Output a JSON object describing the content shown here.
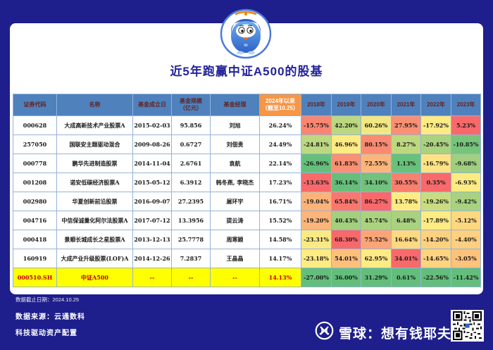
{
  "page": {
    "title": "近5年跑赢中证A500的股基"
  },
  "colors": {
    "background": "#1E1E8C",
    "title_text": "#23239B",
    "header_bg": "#4F81BD",
    "header_text": "#632423",
    "ytd_header_bg": "#F79646",
    "ytd_header_text": "#FFFFFF",
    "grid": "#95B3D7",
    "benchmark_bg": "#FFFF00",
    "benchmark_text": "#C00000",
    "scale_low": "#63BE7B",
    "scale_mid": "#FFEB84",
    "scale_high": "#F8696B"
  },
  "table": {
    "headers": [
      "证券代码",
      "名称",
      "基金成立日",
      "基金规模\n（亿元）",
      "基金经理",
      "2024年以来\n（截至10.25）",
      "2018年",
      "2019年",
      "2020年",
      "2021年",
      "2022年",
      "2023年"
    ],
    "rows": [
      {
        "code": "000628",
        "name": "大成高新技术产业股票A",
        "date": "2015-02-03",
        "size": "95.856",
        "manager": "刘旭",
        "ytd": "26.24%",
        "is_benchmark": false,
        "years": [
          {
            "v": "-15.75%",
            "c": "#FA8671"
          },
          {
            "v": "42.20%",
            "c": "#BBD780"
          },
          {
            "v": "60.26%",
            "c": "#F2E783"
          },
          {
            "v": "27.95%",
            "c": "#FA9073"
          },
          {
            "v": "-17.92%",
            "c": "#FEEB84"
          },
          {
            "v": "5.23%",
            "c": "#F8696B"
          }
        ]
      },
      {
        "code": "257050",
        "name": "国联安主题驱动混合",
        "date": "2009-08-26",
        "size": "0.6727",
        "manager": "刘佃贵",
        "ytd": "24.49%",
        "is_benchmark": false,
        "years": [
          {
            "v": "-24.81%",
            "c": "#BCD880"
          },
          {
            "v": "46.96%",
            "c": "#FFEB84"
          },
          {
            "v": "80.15%",
            "c": "#FA8B72"
          },
          {
            "v": "8.27%",
            "c": "#BED880"
          },
          {
            "v": "-20.45%",
            "c": "#AAD27F"
          },
          {
            "v": "-10.85%",
            "c": "#77C47C"
          }
        ]
      },
      {
        "code": "000778",
        "name": "鹏华先进制造股票",
        "date": "2014-11-04",
        "size": "2.6761",
        "manager": "袁航",
        "ytd": "22.14%",
        "is_benchmark": false,
        "years": [
          {
            "v": "-26.96%",
            "c": "#65BF7B"
          },
          {
            "v": "61.83%",
            "c": "#FA9073"
          },
          {
            "v": "72.55%",
            "c": "#FCB57A"
          },
          {
            "v": "1.13%",
            "c": "#69C07B"
          },
          {
            "v": "-16.79%",
            "c": "#FFE383"
          },
          {
            "v": "-9.68%",
            "c": "#9FCF7F"
          }
        ]
      },
      {
        "code": "001208",
        "name": "诺安低碳经济股票A",
        "date": "2015-05-12",
        "size": "6.3912",
        "manager": "韩冬燕, 李晓杰",
        "ytd": "17.23%",
        "is_benchmark": false,
        "years": [
          {
            "v": "-13.63%",
            "c": "#F8696B"
          },
          {
            "v": "36.14%",
            "c": "#65BF7B"
          },
          {
            "v": "34.10%",
            "c": "#71C27C"
          },
          {
            "v": "30.55%",
            "c": "#F97F6F"
          },
          {
            "v": "0.35%",
            "c": "#F8696B"
          },
          {
            "v": "-6.93%",
            "c": "#FFEB84"
          }
        ]
      },
      {
        "code": "002980",
        "name": "华夏创新前沿股票",
        "date": "2016-09-07",
        "size": "27.2395",
        "manager": "屠环宇",
        "ytd": "16.71%",
        "is_benchmark": false,
        "years": [
          {
            "v": "-19.04%",
            "c": "#FCB379"
          },
          {
            "v": "65.84%",
            "c": "#F9786E"
          },
          {
            "v": "86.27%",
            "c": "#F8696B"
          },
          {
            "v": "13.78%",
            "c": "#FFEB84"
          },
          {
            "v": "-19.26%",
            "c": "#C9DC81"
          },
          {
            "v": "-9.42%",
            "c": "#A8D27F"
          }
        ]
      },
      {
        "code": "004716",
        "name": "中信保诚量化阿尔法股票A",
        "date": "2017-07-12",
        "size": "13.3956",
        "manager": "提云涛",
        "ytd": "15.52%",
        "is_benchmark": false,
        "years": [
          {
            "v": "-19.20%",
            "c": "#FCB57A"
          },
          {
            "v": "40.43%",
            "c": "#A2D07F"
          },
          {
            "v": "45.74%",
            "c": "#AAD37F"
          },
          {
            "v": "6.48%",
            "c": "#A9D27F"
          },
          {
            "v": "-17.89%",
            "c": "#FFEB84"
          },
          {
            "v": "-5.12%",
            "c": "#FED880"
          }
        ]
      },
      {
        "code": "000418",
        "name": "景顺长城成长之星股票A",
        "date": "2013-12-13",
        "size": "25.7778",
        "manager": "周寒颖",
        "ytd": "14.58%",
        "is_benchmark": false,
        "years": [
          {
            "v": "-23.31%",
            "c": "#FAEA84"
          },
          {
            "v": "68.30%",
            "c": "#F8696B"
          },
          {
            "v": "75.52%",
            "c": "#FBA577"
          },
          {
            "v": "16.64%",
            "c": "#FED981"
          },
          {
            "v": "-14.20%",
            "c": "#FED17F"
          },
          {
            "v": "-4.40%",
            "c": "#FED07F"
          }
        ]
      },
      {
        "code": "160919",
        "name": "大成产业升级股票(LOF)A",
        "date": "2014-12-26",
        "size": "7.2837",
        "manager": "王晶晶",
        "ytd": "14.17%",
        "is_benchmark": false,
        "years": [
          {
            "v": "-23.18%",
            "c": "#FFEB84"
          },
          {
            "v": "54.01%",
            "c": "#FDC07C"
          },
          {
            "v": "62.95%",
            "c": "#FFEB84"
          },
          {
            "v": "34.01%",
            "c": "#F8696B"
          },
          {
            "v": "-14.65%",
            "c": "#FED480"
          },
          {
            "v": "-3.05%",
            "c": "#FDC27C"
          }
        ]
      },
      {
        "code": "000510.SH",
        "name": "中证A500",
        "date": "--",
        "size": "--",
        "manager": "--",
        "ytd": "14.13%",
        "is_benchmark": true,
        "years": [
          {
            "v": "-27.00%",
            "c": "#63BE7B"
          },
          {
            "v": "36.00%",
            "c": "#63BE7B"
          },
          {
            "v": "31.29%",
            "c": "#63BE7B"
          },
          {
            "v": "0.61%",
            "c": "#63BE7B"
          },
          {
            "v": "-22.56%",
            "c": "#63BE7B"
          },
          {
            "v": "-11.42%",
            "c": "#63BE7B"
          }
        ]
      }
    ]
  },
  "footer": {
    "data_cutoff": "数据截止日期：2024.10.25",
    "source": "数据来源：云通数科",
    "slogan": "科技驱动资产配置",
    "brand": "雪球：想有钱耶夫"
  }
}
